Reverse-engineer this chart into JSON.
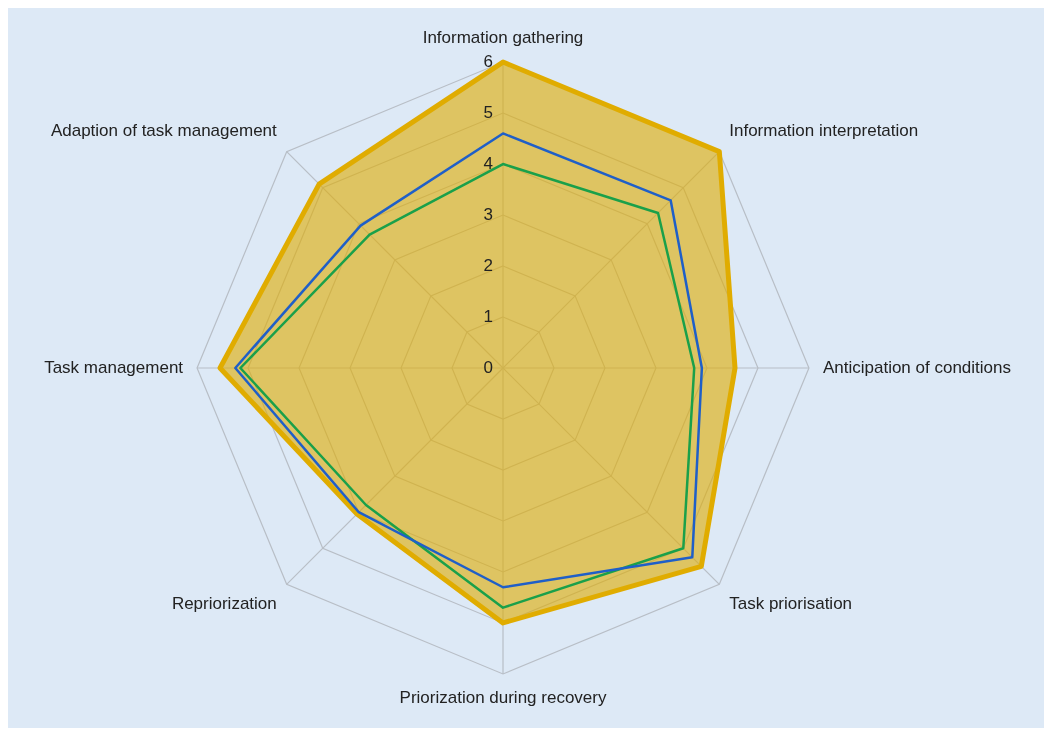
{
  "chart_data": {
    "type": "radar",
    "categories": [
      "Information gathering",
      "Information interpretation",
      "Anticipation of conditions",
      "Task priorisation",
      "Priorization during recovery",
      "Repriorization",
      "Task management",
      "Adaption of task management"
    ],
    "series": [
      {
        "type": "area",
        "color": "#e0ac00",
        "values": [
          6.0,
          6.0,
          4.55,
          5.5,
          5.0,
          4.05,
          5.55,
          5.1
        ]
      },
      {
        "color": "#1aa04a",
        "values": [
          4.0,
          4.3,
          3.75,
          5.0,
          4.7,
          3.8,
          5.15,
          3.7
        ]
      },
      {
        "color": "#1f5fc8",
        "values": [
          4.6,
          4.65,
          3.9,
          5.25,
          4.3,
          4.0,
          5.25,
          3.95
        ]
      }
    ],
    "ylim": [
      0,
      6
    ],
    "yticks": [
      0,
      1,
      2,
      3,
      4,
      5,
      6
    ],
    "grid": true,
    "legend": false
  }
}
